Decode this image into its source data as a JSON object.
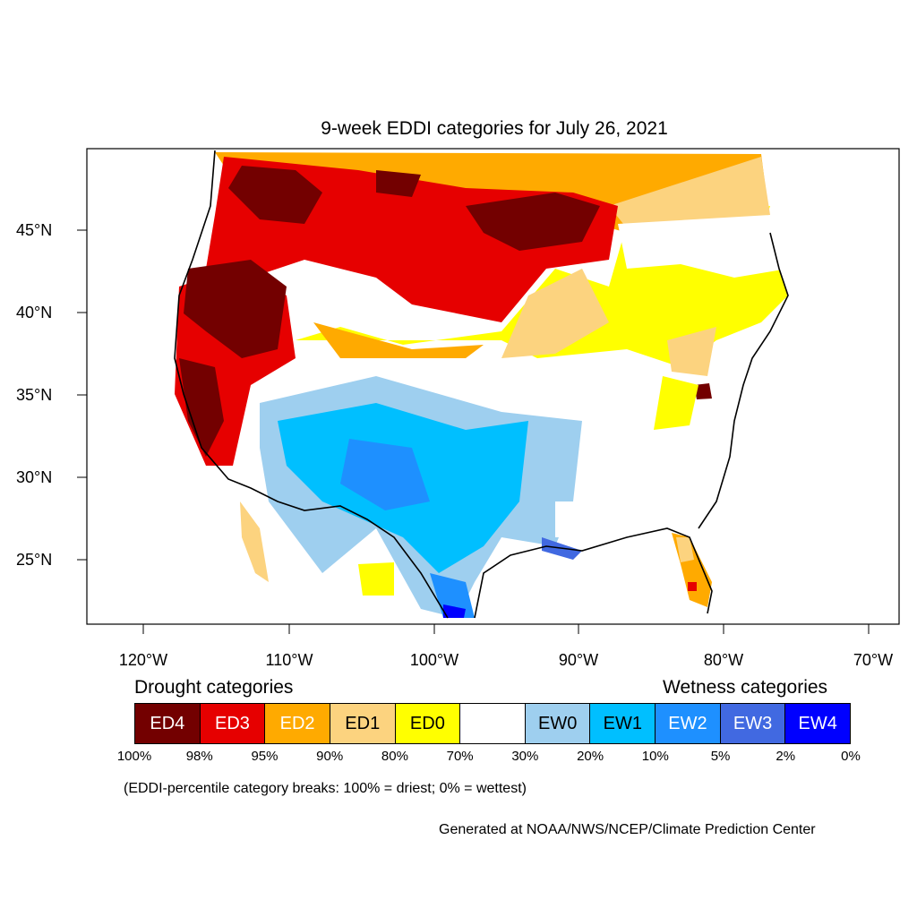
{
  "title": "9-week EDDI categories for July 26, 2021",
  "lat_labels": [
    "45°N",
    "40°N",
    "35°N",
    "30°N",
    "25°N"
  ],
  "lon_labels": [
    "120°W",
    "110°W",
    "100°W",
    "90°W",
    "80°W",
    "70°W"
  ],
  "legend": {
    "drought_heading": "Drought categories",
    "wetness_heading": "Wetness categories",
    "categories": [
      {
        "label": "ED4",
        "color": "#730000",
        "text_color": "#ffffff"
      },
      {
        "label": "ED3",
        "color": "#e60000",
        "text_color": "#ffffff"
      },
      {
        "label": "ED2",
        "color": "#ffaa00",
        "text_color": "#ffffff"
      },
      {
        "label": "ED1",
        "color": "#fcd37f",
        "text_color": "#000000"
      },
      {
        "label": "ED0",
        "color": "#ffff00",
        "text_color": "#000000"
      },
      {
        "label": "",
        "color": "#ffffff",
        "text_color": "#000000"
      },
      {
        "label": "EW0",
        "color": "#9ecfef",
        "text_color": "#000000"
      },
      {
        "label": "EW1",
        "color": "#00bfff",
        "text_color": "#000000"
      },
      {
        "label": "EW2",
        "color": "#1e90ff",
        "text_color": "#ffffff"
      },
      {
        "label": "EW3",
        "color": "#4169e1",
        "text_color": "#ffffff"
      },
      {
        "label": "EW4",
        "color": "#0000ff",
        "text_color": "#ffffff"
      }
    ],
    "percentiles": [
      "100%",
      "98%",
      "95%",
      "90%",
      "80%",
      "70%",
      "30%",
      "20%",
      "10%",
      "5%",
      "2%",
      "0%"
    ]
  },
  "note": "(EDDI-percentile category breaks: 100% = driest; 0% = wettest)",
  "credit": "Generated at NOAA/NWS/NCEP/Climate Prediction Center"
}
